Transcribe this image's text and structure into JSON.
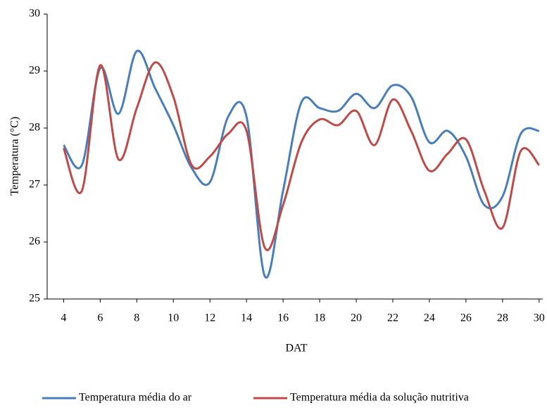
{
  "chart_data": {
    "type": "line",
    "x_label": "DAT",
    "y_label": "Temperatura (°C)",
    "x": [
      4,
      5,
      6,
      7,
      8,
      9,
      10,
      11,
      12,
      13,
      14,
      15,
      16,
      17,
      18,
      19,
      20,
      21,
      22,
      23,
      24,
      25,
      26,
      27,
      28,
      29,
      30
    ],
    "series": [
      {
        "name": "Temperatura média do ar",
        "color": "#4a7ebb",
        "values": [
          27.7,
          27.35,
          29.05,
          28.25,
          29.35,
          28.7,
          28.05,
          27.3,
          27.05,
          28.2,
          28.2,
          25.4,
          26.9,
          28.45,
          28.35,
          28.3,
          28.6,
          28.35,
          28.75,
          28.55,
          27.75,
          27.95,
          27.5,
          26.65,
          26.8,
          27.9,
          27.95
        ]
      },
      {
        "name": "Temperatura média da solução nutritiva",
        "color": "#be4b48",
        "values": [
          27.65,
          26.9,
          29.1,
          27.45,
          28.35,
          29.15,
          28.55,
          27.35,
          27.5,
          27.9,
          27.95,
          25.9,
          26.65,
          27.75,
          28.15,
          28.05,
          28.3,
          27.7,
          28.5,
          27.95,
          27.25,
          27.55,
          27.8,
          26.9,
          26.25,
          27.6,
          27.35
        ]
      }
    ],
    "xlim": [
      3.1,
      30.2
    ],
    "xticks": [
      4,
      6,
      8,
      10,
      12,
      14,
      16,
      18,
      20,
      22,
      24,
      26,
      28,
      30
    ],
    "ylim": [
      25,
      30
    ],
    "yticks": [
      25,
      26,
      27,
      28,
      29,
      30
    ],
    "legend": "bottom"
  }
}
